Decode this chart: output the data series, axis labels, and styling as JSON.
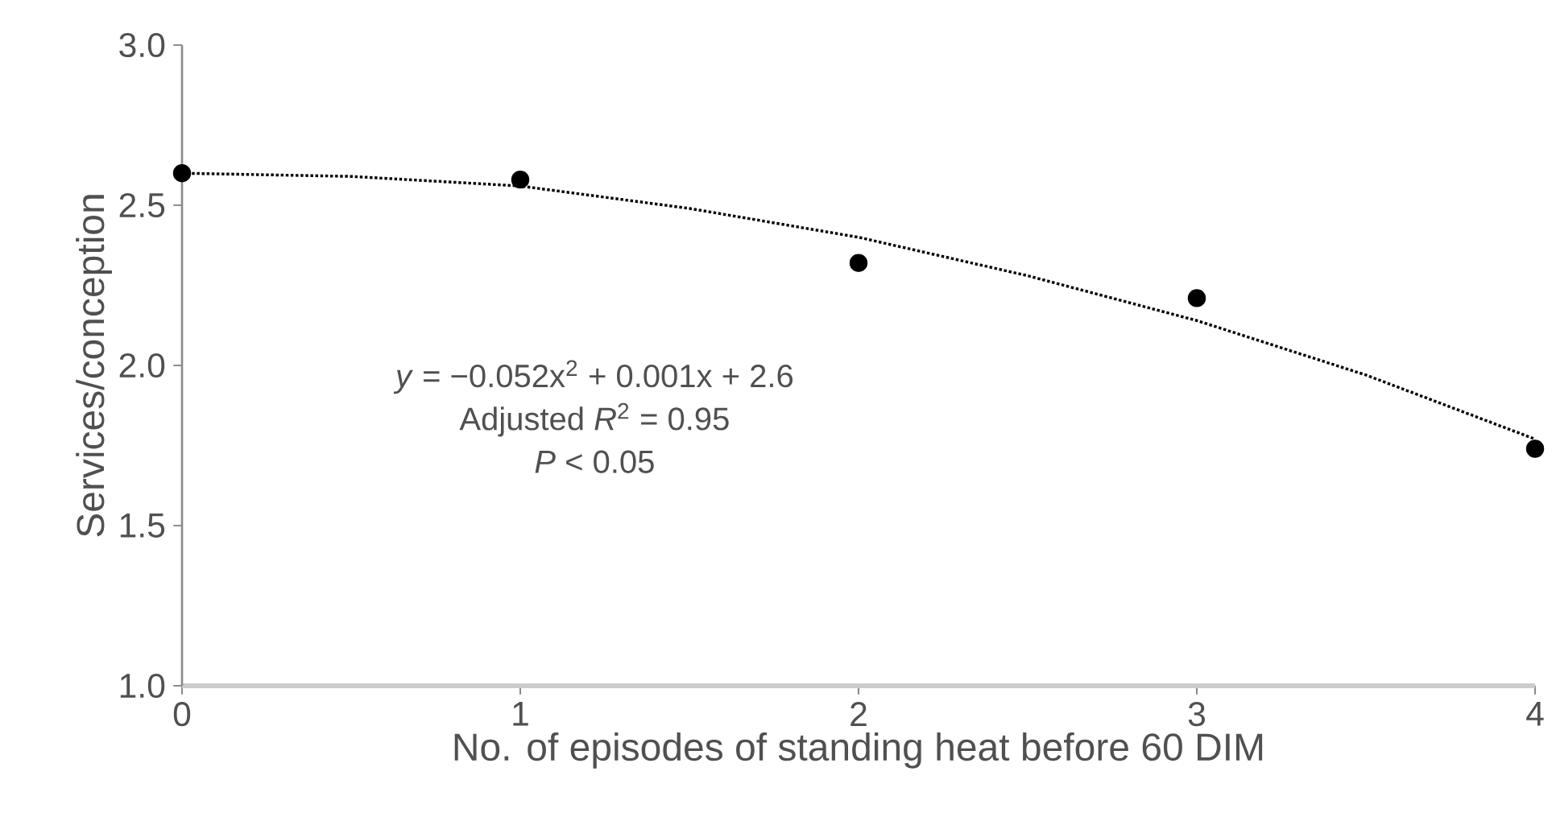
{
  "chart_data": {
    "type": "scatter",
    "xlabel": "No. of episodes of standing heat before 60 DIM",
    "ylabel": "Services/conception",
    "xlim": [
      0,
      4
    ],
    "xticks": [
      0,
      1,
      2,
      3,
      4
    ],
    "ylim": [
      1.0,
      3.0
    ],
    "yticks": [
      {
        "value": 1.0,
        "label": "1.0"
      },
      {
        "value": 1.5,
        "label": "1.5"
      },
      {
        "value": 2.0,
        "label": "2.0"
      },
      {
        "value": 2.5,
        "label": "2.5"
      },
      {
        "value": 3.0,
        "label": "3.0"
      }
    ],
    "series": [
      {
        "color": "#000000",
        "marker": "circle",
        "x": [
          0,
          1,
          2,
          3,
          4
        ],
        "values": [
          2.6,
          2.58,
          2.32,
          2.21,
          1.74
        ]
      },
      {
        "type": "line",
        "color": "#000000",
        "line_style": "dotted",
        "marker": "none",
        "x": [
          0,
          0.5,
          1,
          1.5,
          2,
          2.5,
          3,
          3.5,
          4
        ],
        "values": [
          2.6,
          2.59,
          2.56,
          2.49,
          2.4,
          2.28,
          2.14,
          1.97,
          1.77
        ]
      }
    ],
    "annotations": [
      "*y* = −0.052x$^{2}$ + 0.001x + 2.6",
      "Adjusted *R*$^{2}$ = 0.95",
      "*P* < 0.05"
    ]
  }
}
